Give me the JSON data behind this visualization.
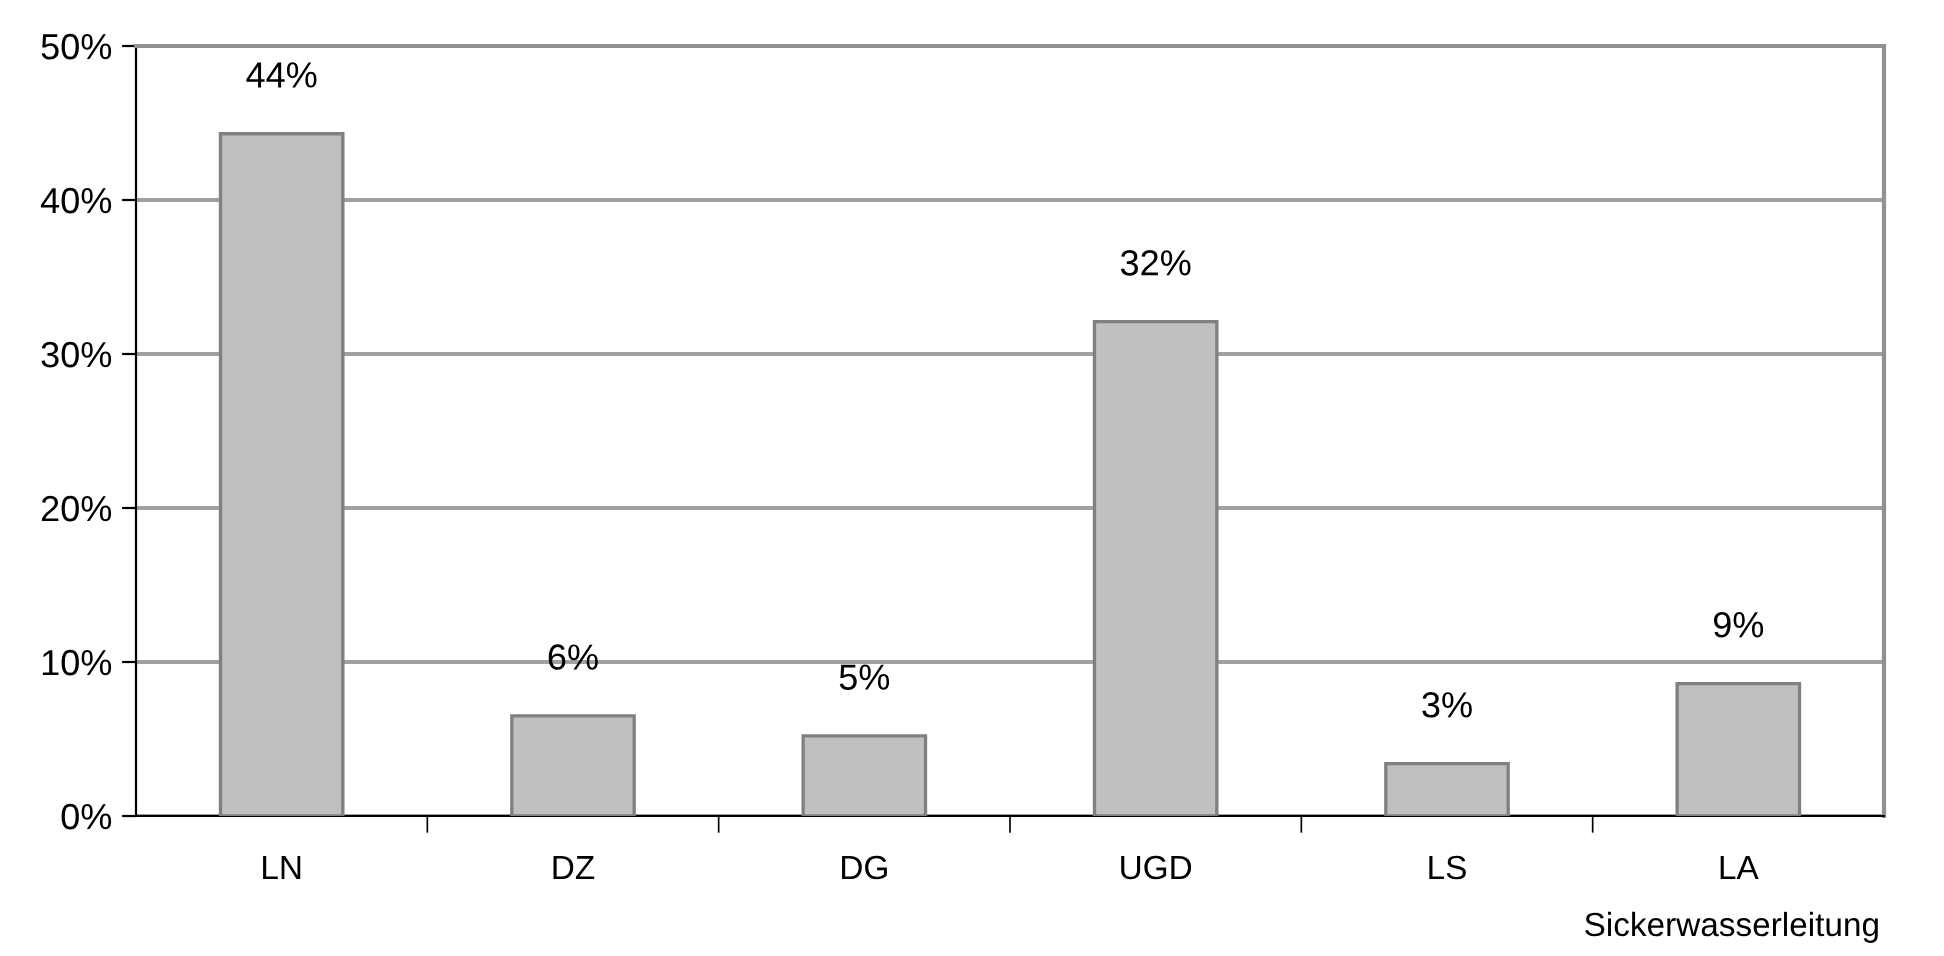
{
  "chart_data": {
    "type": "bar",
    "categories": [
      "LN",
      "DZ",
      "DG",
      "UGD",
      "LS",
      "LA"
    ],
    "values": [
      44.3,
      6.5,
      5.2,
      32.1,
      3.4,
      8.6
    ],
    "value_labels": [
      "44%",
      "6%",
      "5%",
      "32%",
      "3%",
      "9%"
    ],
    "color": "#c0c0c0",
    "xlabel": "Sickerwasserleitung",
    "ylim": [
      0,
      50
    ],
    "yticks": [
      {
        "value": 0,
        "label": "0%"
      },
      {
        "value": 10,
        "label": "10%"
      },
      {
        "value": 20,
        "label": "20%"
      },
      {
        "value": 30,
        "label": "30%"
      },
      {
        "value": 40,
        "label": "40%"
      },
      {
        "value": 50,
        "label": "50%"
      }
    ],
    "grid": "y"
  }
}
